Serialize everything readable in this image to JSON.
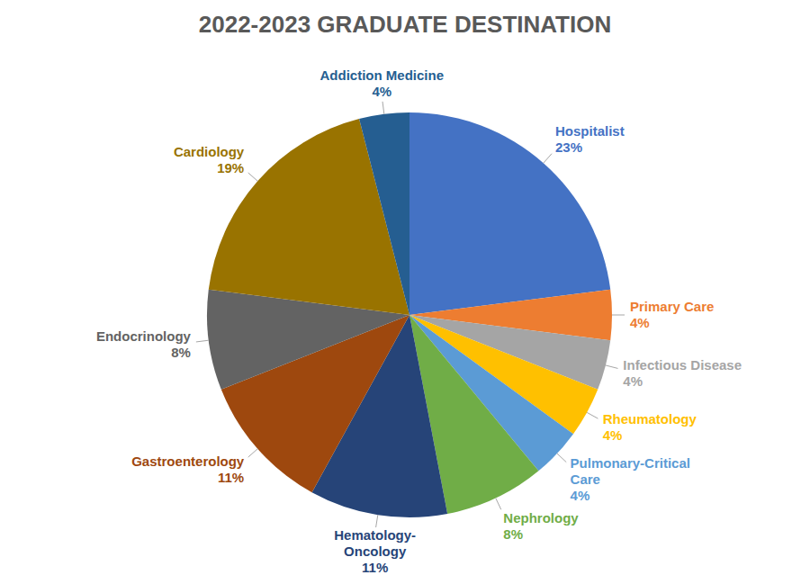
{
  "chart_data": {
    "type": "pie",
    "title": "2022-2023 GRADUATE DESTINATION",
    "categories": [
      "Hospitalist",
      "Primary Care",
      "Infectious Disease",
      "Rheumatology",
      "Pulmonary-Critical Care",
      "Nephrology",
      "Hematology-Oncology",
      "Gastroenterology",
      "Endocrinology",
      "Cardiology",
      "Addiction Medicine"
    ],
    "values": [
      23,
      4,
      4,
      4,
      4,
      8,
      11,
      11,
      8,
      19,
      4
    ],
    "value_labels": [
      "23%",
      "4%",
      "4%",
      "4%",
      "4%",
      "8%",
      "11%",
      "11%",
      "8%",
      "19%",
      "4%"
    ],
    "colors": [
      "#4472c4",
      "#ed7d31",
      "#a5a5a5",
      "#ffc000",
      "#5b9bd5",
      "#70ad47",
      "#264478",
      "#9e480e",
      "#636363",
      "#997300",
      "#255e91"
    ],
    "data_labels": true
  }
}
